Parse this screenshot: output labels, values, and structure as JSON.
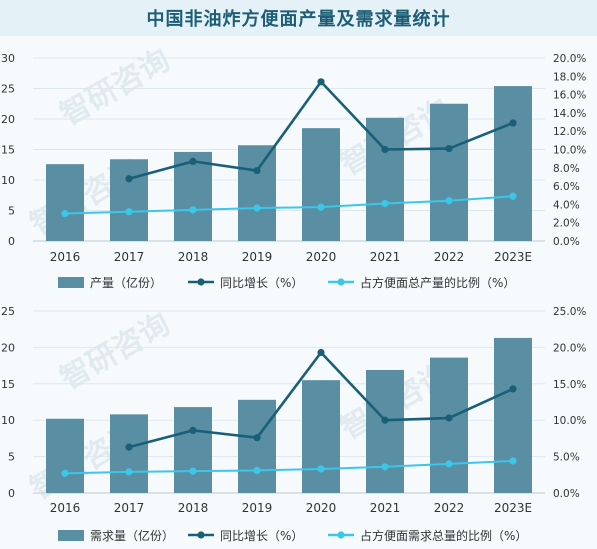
{
  "title": "中国非油炸方便面产量及需求量统计",
  "watermark": "智研咨询",
  "colors": {
    "bar": "#5a8ea3",
    "line_growth": "#1a5f78",
    "line_share": "#3cc6e8",
    "grid": "#dde7ec",
    "axis_text": "#333333"
  },
  "chart_data": [
    {
      "type": "bar",
      "categories": [
        "2016",
        "2017",
        "2018",
        "2019",
        "2020",
        "2021",
        "2022",
        "2023E"
      ],
      "y_left_ticks": [
        "0",
        "5",
        "10",
        "15",
        "20",
        "25",
        "30"
      ],
      "y_right_ticks": [
        "0.0%",
        "2.0%",
        "4.0%",
        "6.0%",
        "8.0%",
        "10.0%",
        "12.0%",
        "14.0%",
        "16.0%",
        "18.0%",
        "20.0%"
      ],
      "ylim_left": [
        0,
        30
      ],
      "ylim_right": [
        0,
        20
      ],
      "series": [
        {
          "name": "产量（亿份）",
          "kind": "bar",
          "axis": "left",
          "values": [
            12.6,
            13.4,
            14.6,
            15.7,
            18.5,
            20.2,
            22.5,
            25.4
          ]
        },
        {
          "name": "同比增长（%）",
          "kind": "line",
          "axis": "right",
          "values": [
            null,
            6.8,
            8.7,
            7.7,
            17.4,
            10.0,
            10.1,
            12.9
          ]
        },
        {
          "name": "占方便面总产量的比例（%）",
          "kind": "line",
          "axis": "right",
          "values": [
            3.0,
            3.2,
            3.4,
            3.6,
            3.7,
            4.1,
            4.4,
            4.9
          ]
        }
      ],
      "grid": true,
      "legend_position": "bottom"
    },
    {
      "type": "bar",
      "categories": [
        "2016",
        "2017",
        "2018",
        "2019",
        "2020",
        "2021",
        "2022",
        "2023E"
      ],
      "y_left_ticks": [
        "0",
        "5",
        "10",
        "15",
        "20",
        "25"
      ],
      "y_right_ticks": [
        "0.0%",
        "5.0%",
        "10.0%",
        "15.0%",
        "20.0%",
        "25.0%"
      ],
      "ylim_left": [
        0,
        25
      ],
      "ylim_right": [
        0,
        25
      ],
      "series": [
        {
          "name": "需求量（亿份）",
          "kind": "bar",
          "axis": "left",
          "values": [
            10.2,
            10.8,
            11.8,
            12.8,
            15.5,
            16.9,
            18.6,
            21.3
          ]
        },
        {
          "name": "同比增长（%）",
          "kind": "line",
          "axis": "right",
          "values": [
            null,
            6.3,
            8.6,
            7.6,
            19.3,
            10.0,
            10.3,
            14.3
          ]
        },
        {
          "name": "占方便面需求总量的比例（%）",
          "kind": "line",
          "axis": "right",
          "values": [
            2.7,
            2.9,
            3.0,
            3.1,
            3.3,
            3.6,
            4.0,
            4.4
          ]
        }
      ],
      "grid": true,
      "legend_position": "bottom"
    }
  ]
}
